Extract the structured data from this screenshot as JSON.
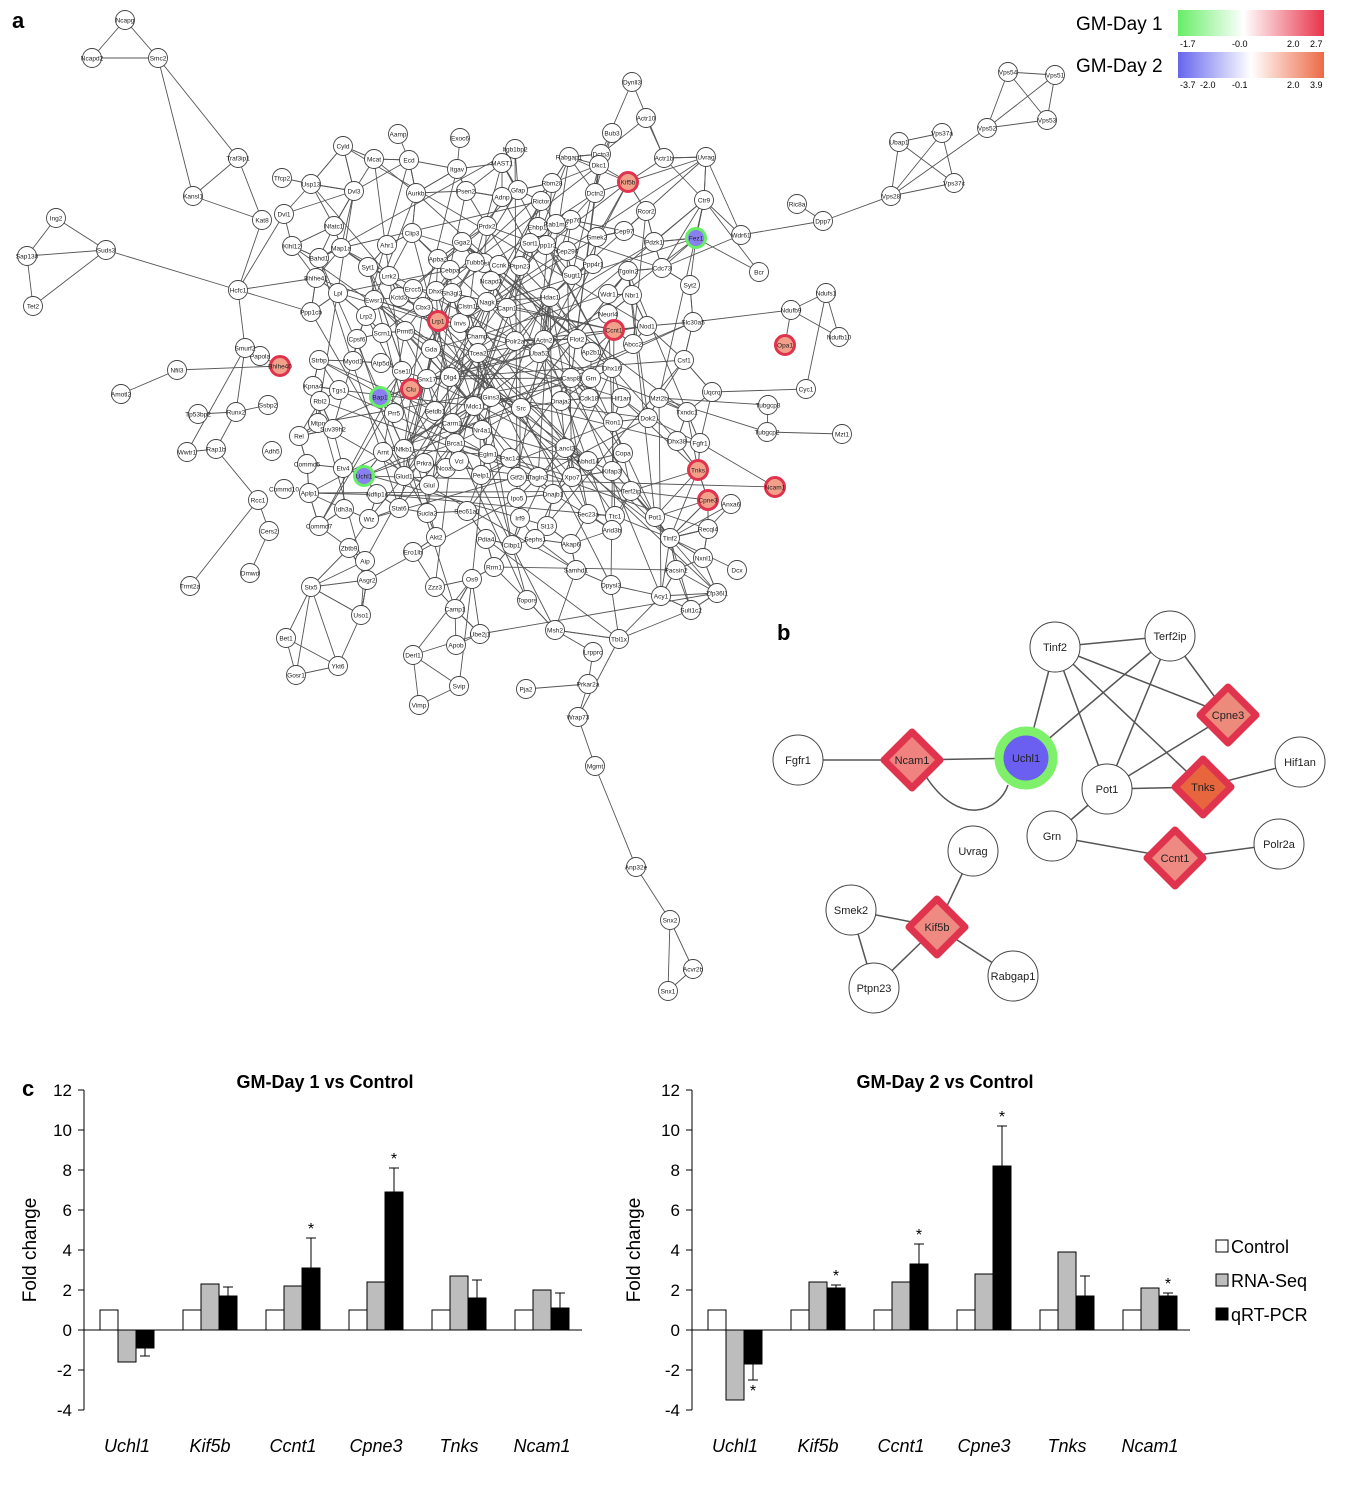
{
  "panels": {
    "a": "a",
    "b": "b",
    "c": "c"
  },
  "color_legend": {
    "day1": {
      "label": "GM-Day 1",
      "ticks": [
        "-1.7",
        "-0.0",
        "2.0",
        "2.7"
      ],
      "low_color": "#66ee66",
      "high_color": "#e8334a"
    },
    "day2": {
      "label": "GM-Day 2",
      "ticks": [
        "-3.7",
        "-2.0",
        "-0.1",
        "2.0",
        "3.9"
      ],
      "low_color": "#6666ee",
      "high_color": "#ec6a46"
    }
  },
  "network_a": {
    "nodes": [
      {
        "id": "Ncapg"
      },
      {
        "id": "Ncapd2"
      },
      {
        "id": "Smc2"
      },
      {
        "id": "Traf3ip1"
      },
      {
        "id": "Kansl1"
      },
      {
        "id": "Ing2"
      },
      {
        "id": "Sap130"
      },
      {
        "id": "Suds3"
      },
      {
        "id": "Tet2"
      },
      {
        "id": "Hcfc1"
      },
      {
        "id": "Kat8"
      },
      {
        "id": "Dvl1"
      },
      {
        "id": "Klhl12"
      },
      {
        "id": "Tfcp2"
      },
      {
        "id": "Usp13"
      },
      {
        "id": "Cyld"
      },
      {
        "id": "Dvl3"
      },
      {
        "id": "Aamp"
      },
      {
        "id": "Ecd"
      },
      {
        "id": "Mcat"
      },
      {
        "id": "Aurkb"
      },
      {
        "id": "Exoc6"
      },
      {
        "id": "Itgav"
      },
      {
        "id": "Psen2"
      },
      {
        "id": "Itgb1bp2"
      },
      {
        "id": "MAST1"
      },
      {
        "id": "Gfap"
      },
      {
        "id": "Rabgap1"
      },
      {
        "id": "Rbm28"
      },
      {
        "id": "Dctn2"
      },
      {
        "id": "Dctn3"
      },
      {
        "id": "Dynll3"
      },
      {
        "id": "Bub3"
      },
      {
        "id": "Actr10"
      },
      {
        "id": "Actr1b"
      },
      {
        "id": "Dkc1"
      },
      {
        "id": "Kif5b",
        "role": "up"
      },
      {
        "id": "Uvrag"
      },
      {
        "id": "Ctr9"
      },
      {
        "id": "Rcor2"
      },
      {
        "id": "Pdzk1"
      },
      {
        "id": "Fez1",
        "role": "down"
      },
      {
        "id": "Wdr61"
      },
      {
        "id": "Cdc73"
      },
      {
        "id": "Smek2"
      },
      {
        "id": "Cep97"
      },
      {
        "id": "Cep76"
      },
      {
        "id": "Rictor"
      },
      {
        "id": "Ppp1r2"
      },
      {
        "id": "Nfatc1"
      },
      {
        "id": "Map1a"
      },
      {
        "id": "Bahd1"
      },
      {
        "id": "Clip3"
      },
      {
        "id": "Ahr1"
      },
      {
        "id": "Gga2"
      },
      {
        "id": "Prdx2"
      },
      {
        "id": "Apba2"
      },
      {
        "id": "Ecsit"
      },
      {
        "id": "Adnp"
      },
      {
        "id": "Ehbp1l"
      },
      {
        "id": "Sort1"
      },
      {
        "id": "Cep290"
      },
      {
        "id": "Rab1m2"
      },
      {
        "id": "Syt1"
      },
      {
        "id": "Lrrk2"
      },
      {
        "id": "Bhlhe41"
      },
      {
        "id": "Ewsr1"
      },
      {
        "id": "Kctd3"
      },
      {
        "id": "Ercc5"
      },
      {
        "id": "Dhx8"
      },
      {
        "id": "Cebpa"
      },
      {
        "id": "Sh3gl2"
      },
      {
        "id": "Tubb5"
      },
      {
        "id": "Ccnk"
      },
      {
        "id": "Ncapd3"
      },
      {
        "id": "Nagk"
      },
      {
        "id": "Ptpn23"
      },
      {
        "id": "Sugt1"
      },
      {
        "id": "Ppp4r1"
      },
      {
        "id": "Tgoln2"
      },
      {
        "id": "Syt2"
      },
      {
        "id": "Lpl"
      },
      {
        "id": "Lrp2"
      },
      {
        "id": "Scrn1"
      },
      {
        "id": "Cbx3"
      },
      {
        "id": "Lrp1",
        "role": "up"
      },
      {
        "id": "Invs"
      },
      {
        "id": "Champ"
      },
      {
        "id": "Clstn1"
      },
      {
        "id": "Capn1"
      },
      {
        "id": "Hdac1"
      },
      {
        "id": "Wdr1"
      },
      {
        "id": "Nbr1"
      },
      {
        "id": "Neurl4"
      },
      {
        "id": "Ccnt1",
        "role": "up"
      },
      {
        "id": "Nod1"
      },
      {
        "id": "Slc30a5"
      },
      {
        "id": "Ppp1cb"
      },
      {
        "id": "Prmt5"
      },
      {
        "id": "Papola"
      },
      {
        "id": "Bhlhe40",
        "role": "up"
      },
      {
        "id": "Strbp"
      },
      {
        "id": "Cpsf6"
      },
      {
        "id": "Myod1"
      },
      {
        "id": "Atp5d"
      },
      {
        "id": "Gda"
      },
      {
        "id": "Polr2a"
      },
      {
        "id": "Actn2"
      },
      {
        "id": "Flot2"
      },
      {
        "id": "Ap2b1"
      },
      {
        "id": "Abcc2"
      },
      {
        "id": "Csf1"
      },
      {
        "id": "Opa1",
        "role": "up"
      },
      {
        "id": "Smurf2"
      },
      {
        "id": "Kpna4"
      },
      {
        "id": "Tgs1"
      },
      {
        "id": "Bap1",
        "role": "down"
      },
      {
        "id": "Cse1l"
      },
      {
        "id": "Clu",
        "role": "up"
      },
      {
        "id": "Snx17"
      },
      {
        "id": "Dlg4"
      },
      {
        "id": "Tcea2"
      },
      {
        "id": "Uba52"
      },
      {
        "id": "Casp8"
      },
      {
        "id": "Grn"
      },
      {
        "id": "Dhx16"
      },
      {
        "id": "Mzt2b"
      },
      {
        "id": "Uqcrq"
      },
      {
        "id": "Nfil3"
      },
      {
        "id": "Amotl2"
      },
      {
        "id": "Tp53bp2"
      },
      {
        "id": "Runx2"
      },
      {
        "id": "Ssbp2"
      },
      {
        "id": "Rbl2"
      },
      {
        "id": "Prr5"
      },
      {
        "id": "Mdc1"
      },
      {
        "id": "Gins3"
      },
      {
        "id": "Src"
      },
      {
        "id": "Cdk18"
      },
      {
        "id": "Hif1an"
      },
      {
        "id": "Dok2"
      },
      {
        "id": "Txndc1"
      },
      {
        "id": "Tubgcp3"
      },
      {
        "id": "Tubgcp2"
      },
      {
        "id": "Mzt1"
      },
      {
        "id": "Cyc1"
      },
      {
        "id": "Wwtr1"
      },
      {
        "id": "Rap1b"
      },
      {
        "id": "Rel"
      },
      {
        "id": "Mtpn"
      },
      {
        "id": "Suv39h2"
      },
      {
        "id": "Setdb1"
      },
      {
        "id": "Carm1"
      },
      {
        "id": "Nr4a1"
      },
      {
        "id": "Dnaja3"
      },
      {
        "id": "Ron1"
      },
      {
        "id": "Dhx38"
      },
      {
        "id": "Fgfr1"
      },
      {
        "id": "Adh5"
      },
      {
        "id": "Commd5"
      },
      {
        "id": "Arnt"
      },
      {
        "id": "Nfkb1"
      },
      {
        "id": "Brca1"
      },
      {
        "id": "Eglm1"
      },
      {
        "id": "Pac14"
      },
      {
        "id": "Lancl2"
      },
      {
        "id": "Abhd14"
      },
      {
        "id": "Kifap3"
      },
      {
        "id": "Tnks",
        "role": "up"
      },
      {
        "id": "Etv4"
      },
      {
        "id": "Uchl1",
        "role": "down"
      },
      {
        "id": "Commd10"
      },
      {
        "id": "Aplp1"
      },
      {
        "id": "Ndfip1c"
      },
      {
        "id": "Glud1"
      },
      {
        "id": "Prkra"
      },
      {
        "id": "Ncoa3"
      },
      {
        "id": "Vcl"
      },
      {
        "id": "Pelp1"
      },
      {
        "id": "Gtf2i"
      },
      {
        "id": "Tagln2"
      },
      {
        "id": "Xpo7"
      },
      {
        "id": "Copa"
      },
      {
        "id": "Terf2ip"
      },
      {
        "id": "Cpne3",
        "role": "up"
      },
      {
        "id": "Ncam1",
        "role": "up"
      },
      {
        "id": "Rcc1"
      },
      {
        "id": "Commd7"
      },
      {
        "id": "Idh3a"
      },
      {
        "id": "Stat6"
      },
      {
        "id": "Glul"
      },
      {
        "id": "Sucla2"
      },
      {
        "id": "Ipo5"
      },
      {
        "id": "Dnajb1"
      },
      {
        "id": "Sec23a"
      },
      {
        "id": "Ttc1"
      },
      {
        "id": "Pot1"
      },
      {
        "id": "Recql4"
      },
      {
        "id": "Anxa6"
      },
      {
        "id": "Cers2"
      },
      {
        "id": "Wiz"
      },
      {
        "id": "Sec61a1"
      },
      {
        "id": "Irf9"
      },
      {
        "id": "St13"
      },
      {
        "id": "Sephs1"
      },
      {
        "id": "Akap6"
      },
      {
        "id": "Arid3b"
      },
      {
        "id": "Tinf2"
      },
      {
        "id": "Nxnl1"
      },
      {
        "id": "Dcx"
      },
      {
        "id": "Trmt2a"
      },
      {
        "id": "Dmwd"
      },
      {
        "id": "Zbtb9"
      },
      {
        "id": "Aip"
      },
      {
        "id": "Ero1lb"
      },
      {
        "id": "Akt2"
      },
      {
        "id": "Pdia4"
      },
      {
        "id": "Clbp1"
      },
      {
        "id": "Samhd1"
      },
      {
        "id": "Pacsin2"
      },
      {
        "id": "Zfp36l1"
      },
      {
        "id": "Asgr2"
      },
      {
        "id": "Zzz3"
      },
      {
        "id": "Os9"
      },
      {
        "id": "Rrm1"
      },
      {
        "id": "Dpysl3"
      },
      {
        "id": "Acy1"
      },
      {
        "id": "Sult1c2"
      },
      {
        "id": "Stx5"
      },
      {
        "id": "Uso1"
      },
      {
        "id": "Camp1"
      },
      {
        "id": "Apob"
      },
      {
        "id": "Ube2j1"
      },
      {
        "id": "Topors"
      },
      {
        "id": "Msh2"
      },
      {
        "id": "Tbl1x"
      },
      {
        "id": "Bet1"
      },
      {
        "id": "Gosr1"
      },
      {
        "id": "Ykt6"
      },
      {
        "id": "Derl1"
      },
      {
        "id": "Lrpprc"
      },
      {
        "id": "Prkar2a"
      },
      {
        "id": "Svip"
      },
      {
        "id": "Vimp"
      },
      {
        "id": "Pja2"
      },
      {
        "id": "Wrap73"
      },
      {
        "id": "Mgmt"
      },
      {
        "id": "Anp32e"
      },
      {
        "id": "Snx2"
      },
      {
        "id": "Acvr2b"
      },
      {
        "id": "Snx1"
      },
      {
        "id": "Vps54"
      },
      {
        "id": "Vps51"
      },
      {
        "id": "Vps52"
      },
      {
        "id": "Vps53"
      },
      {
        "id": "Ubap1"
      },
      {
        "id": "Vps37a"
      },
      {
        "id": "Vps37c"
      },
      {
        "id": "Vps28"
      },
      {
        "id": "Ric8a"
      },
      {
        "id": "Dpp7"
      },
      {
        "id": "Bcr"
      },
      {
        "id": "Ndufs1"
      },
      {
        "id": "Ndufb9"
      },
      {
        "id": "Ndufb10"
      }
    ]
  },
  "network_b": {
    "nodes": [
      {
        "id": "Tinf2",
        "shape": "circle"
      },
      {
        "id": "Terf2ip",
        "shape": "circle"
      },
      {
        "id": "Cpne3",
        "shape": "diamond",
        "fill": "#ec8a7c",
        "border": "#e0334d"
      },
      {
        "id": "Fgfr1",
        "shape": "circle"
      },
      {
        "id": "Ncam1",
        "shape": "diamond",
        "fill": "#f0837f",
        "border": "#e0334d"
      },
      {
        "id": "Uchl1",
        "shape": "big-circle",
        "fill": "#6a5ff0",
        "border": "#7ef06a"
      },
      {
        "id": "Hif1an",
        "shape": "circle"
      },
      {
        "id": "Pot1",
        "shape": "circle"
      },
      {
        "id": "Tnks",
        "shape": "diamond",
        "fill": "#e8663e",
        "border": "#e0334d"
      },
      {
        "id": "Grn",
        "shape": "circle"
      },
      {
        "id": "Ccnt1",
        "shape": "diamond",
        "fill": "#ee8a82",
        "border": "#e0334d"
      },
      {
        "id": "Polr2a",
        "shape": "circle"
      },
      {
        "id": "Uvrag",
        "shape": "circle"
      },
      {
        "id": "Smek2",
        "shape": "circle"
      },
      {
        "id": "Kif5b",
        "shape": "diamond",
        "fill": "#ee8a82",
        "border": "#e0334d"
      },
      {
        "id": "Rabgap1",
        "shape": "circle"
      },
      {
        "id": "Ptpn23",
        "shape": "circle"
      }
    ],
    "edges": [
      [
        "Tinf2",
        "Terf2ip"
      ],
      [
        "Tinf2",
        "Cpne3"
      ],
      [
        "Tinf2",
        "Tnks"
      ],
      [
        "Tinf2",
        "Pot1"
      ],
      [
        "Tinf2",
        "Uchl1"
      ],
      [
        "Terf2ip",
        "Cpne3"
      ],
      [
        "Terf2ip",
        "Pot1"
      ],
      [
        "Terf2ip",
        "Uchl1"
      ],
      [
        "Cpne3",
        "Pot1"
      ],
      [
        "Tnks",
        "Hif1an"
      ],
      [
        "Tnks",
        "Pot1"
      ],
      [
        "Pot1",
        "Grn"
      ],
      [
        "Grn",
        "Ccnt1"
      ],
      [
        "Ccnt1",
        "Polr2a"
      ],
      [
        "Fgfr1",
        "Ncam1"
      ],
      [
        "Ncam1",
        "Uchl1"
      ],
      [
        "Uvrag",
        "Kif5b"
      ],
      [
        "Smek2",
        "Kif5b"
      ],
      [
        "Smek2",
        "Ptpn23"
      ],
      [
        "Kif5b",
        "Ptpn23"
      ],
      [
        "Kif5b",
        "Rabgap1"
      ]
    ]
  },
  "chart_data": [
    {
      "type": "bar",
      "title": "GM-Day 1 vs Control",
      "ylabel": "Fold change",
      "ylim": [
        -4,
        12
      ],
      "yticks": [
        "-4",
        "-2",
        "0",
        "2",
        "4",
        "6",
        "8",
        "10",
        "12"
      ],
      "categories": [
        "Uchl1",
        "Kif5b",
        "Ccnt1",
        "Cpne3",
        "Tnks",
        "Ncam1"
      ],
      "series": [
        {
          "name": "Control",
          "color": "#ffffff",
          "values": [
            1,
            1,
            1,
            1,
            1,
            1
          ]
        },
        {
          "name": "RNA-Seq",
          "color": "#bdbdbd",
          "values": [
            -1.6,
            2.3,
            2.2,
            2.4,
            2.7,
            2.0
          ]
        },
        {
          "name": "qRT-PCR",
          "color": "#000000",
          "values": [
            -0.9,
            1.7,
            3.1,
            6.9,
            1.6,
            1.1
          ],
          "errors": [
            0.4,
            0.45,
            1.5,
            1.2,
            0.9,
            0.75
          ],
          "significant": [
            false,
            false,
            true,
            true,
            false,
            false
          ]
        }
      ]
    },
    {
      "type": "bar",
      "title": "GM-Day 2 vs Control",
      "ylabel": "Fold change",
      "ylim": [
        -4,
        12
      ],
      "yticks": [
        "-4",
        "-2",
        "0",
        "2",
        "4",
        "6",
        "8",
        "10",
        "12"
      ],
      "categories": [
        "Uchl1",
        "Kif5b",
        "Ccnt1",
        "Cpne3",
        "Tnks",
        "Ncam1"
      ],
      "series": [
        {
          "name": "Control",
          "color": "#ffffff",
          "values": [
            1,
            1,
            1,
            1,
            1,
            1
          ]
        },
        {
          "name": "RNA-Seq",
          "color": "#bdbdbd",
          "values": [
            -3.5,
            2.4,
            2.4,
            2.8,
            3.9,
            2.1
          ]
        },
        {
          "name": "qRT-PCR",
          "color": "#000000",
          "values": [
            -1.7,
            2.1,
            3.3,
            8.2,
            1.7,
            1.7
          ],
          "errors": [
            0.8,
            0.15,
            1.0,
            2.0,
            1.0,
            0.15
          ],
          "significant": [
            true,
            true,
            true,
            true,
            false,
            true
          ]
        }
      ]
    }
  ],
  "chart_legend": [
    "Control",
    "RNA-Seq",
    "qRT-PCR"
  ],
  "significance_mark": "*"
}
